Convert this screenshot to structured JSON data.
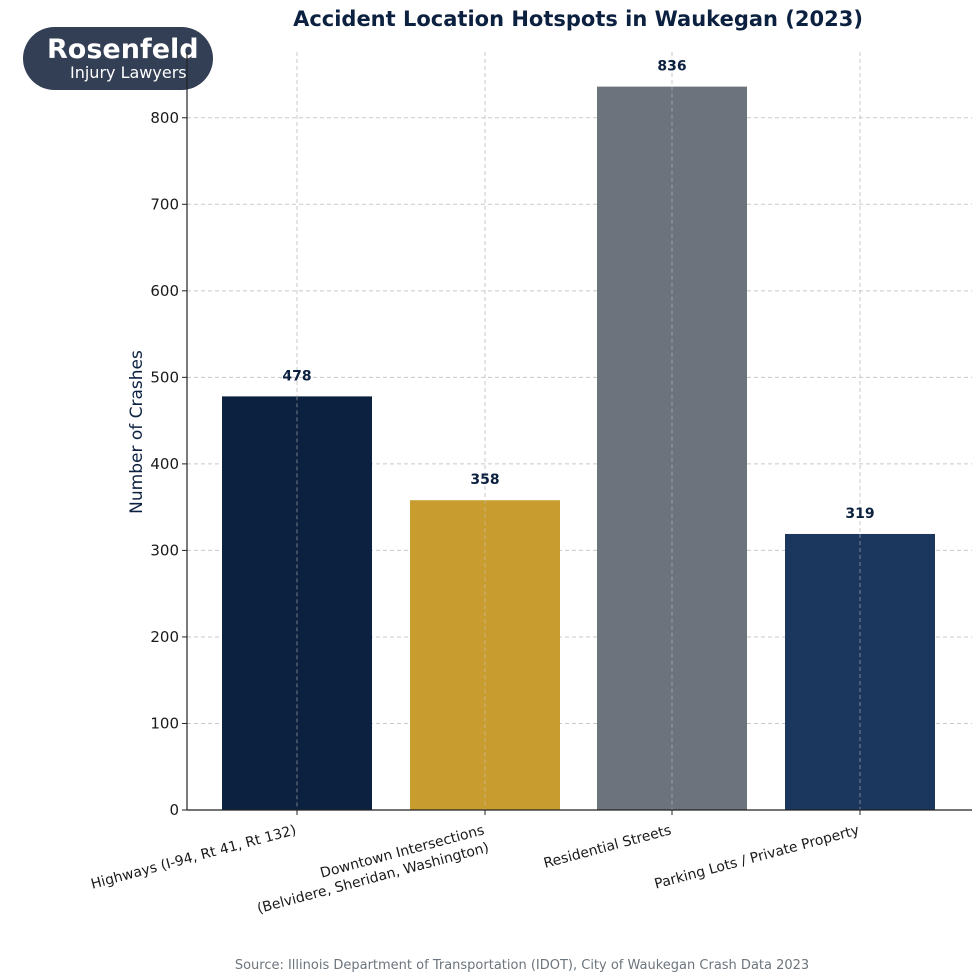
{
  "logo": {
    "text_main": "Rosenfeld",
    "text_sub": "Injury Lawyers"
  },
  "chart_data": {
    "type": "bar",
    "title": "Accident Location Hotspots in Waukegan (2023)",
    "xlabel": "",
    "ylabel": "Number of Crashes",
    "ylim": [
      0,
      876
    ],
    "yticks": [
      0,
      100,
      200,
      300,
      400,
      500,
      600,
      700,
      800
    ],
    "grid": true,
    "categories": [
      [
        "Highways (I-94, Rt 41, Rt 132)"
      ],
      [
        "Downtown Intersections",
        "(Belvidere, Sheridan, Washington)"
      ],
      [
        "Residential Streets"
      ],
      [
        "Parking Lots / Private Property"
      ]
    ],
    "values": [
      478,
      358,
      836,
      319
    ],
    "colors": [
      "#0c213f",
      "#c89c2e",
      "#6c737c",
      "#1b375e"
    ],
    "value_labels": [
      "478",
      "358",
      "836",
      "319"
    ],
    "source": "Source: Illinois Department of Transportation (IDOT), City of Waukegan Crash Data 2023"
  }
}
